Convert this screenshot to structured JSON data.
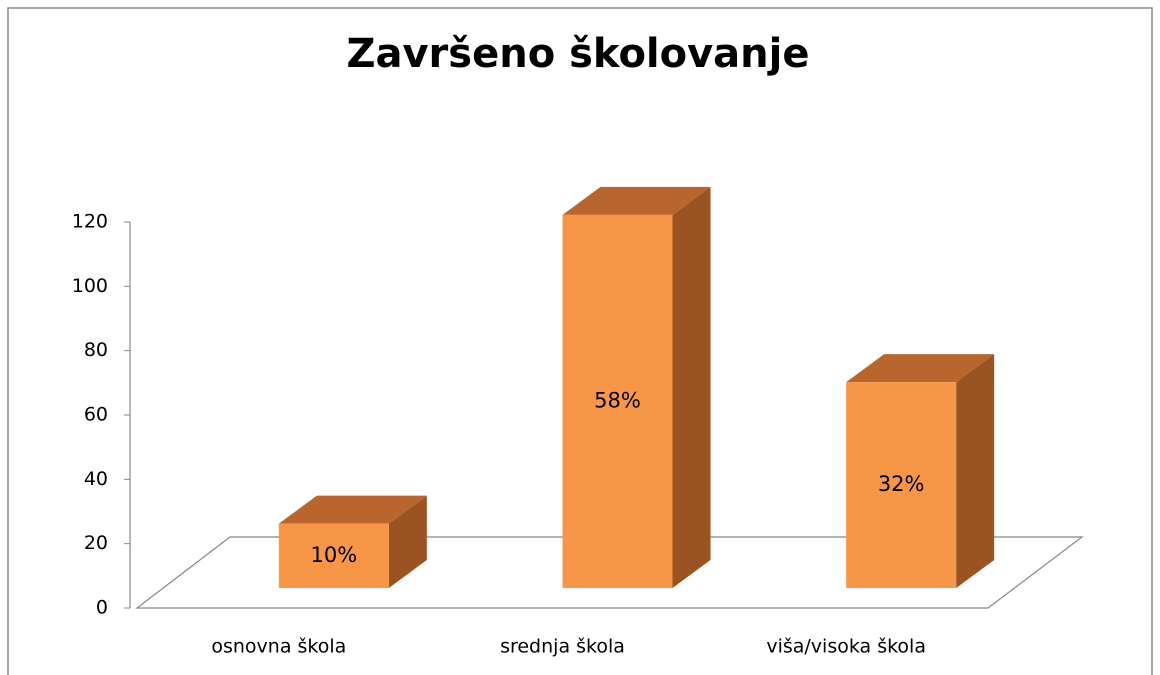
{
  "chart_data": {
    "type": "bar3d",
    "title": "Završeno školovanje",
    "categories": [
      "osnovna škola",
      "srednja škola",
      "viša/visoka škola"
    ],
    "values": [
      20,
      116,
      64
    ],
    "value_labels": [
      "10%",
      "58%",
      "32%"
    ],
    "color": "#f79646",
    "ylim": [
      0,
      120
    ],
    "yticks": [
      0,
      20,
      40,
      60,
      80,
      100,
      120
    ]
  }
}
